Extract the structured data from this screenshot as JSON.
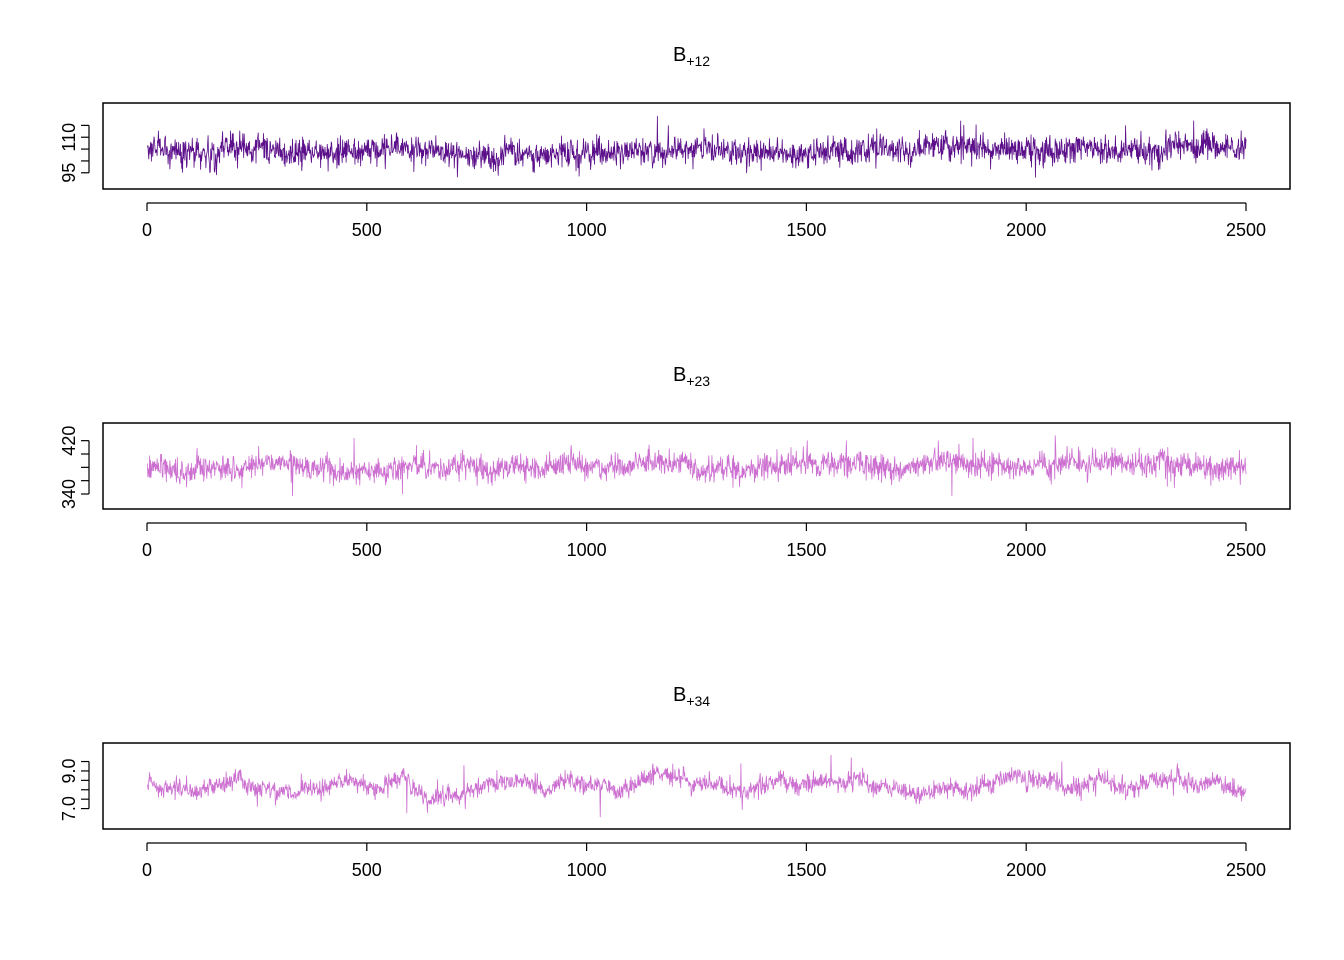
{
  "chart_data": [
    {
      "type": "line",
      "title_main": "B",
      "title_sub": "+12",
      "color": "#5b0f8a",
      "xlim": [
        0,
        2500
      ],
      "ylim": [
        92.8,
        119.8
      ],
      "x_ticks": [
        0,
        500,
        1000,
        1500,
        2000,
        2500
      ],
      "x_tick_labels": [
        "0",
        "500",
        "1000",
        "1500",
        "2000",
        "2500"
      ],
      "y_ticks": [
        95,
        100,
        105,
        110,
        115
      ],
      "y_tick_labels": [
        "95",
        "",
        "",
        "110",
        ""
      ],
      "series": [
        {
          "n": 2500,
          "mean": 104.5,
          "noise_sd": 3.0,
          "wander_sd": 1.2,
          "clip": [
            93,
            119
          ],
          "features": [
            [
              1160,
              119
            ],
            [
              2020,
              93
            ],
            [
              1850,
              117
            ],
            [
              2380,
              117
            ],
            [
              2225,
              115
            ],
            [
              1185,
              115
            ],
            [
              80,
              95
            ],
            [
              880,
              95
            ]
          ]
        }
      ]
    },
    {
      "type": "line",
      "title_main": "B",
      "title_sub": "+23",
      "color": "#cc6fd0",
      "xlim": [
        0,
        2500
      ],
      "ylim": [
        334,
        430
      ],
      "x_ticks": [
        0,
        500,
        1000,
        1500,
        2000,
        2500
      ],
      "x_tick_labels": [
        "0",
        "500",
        "1000",
        "1500",
        "2000",
        "2500"
      ],
      "y_ticks": [
        340,
        360,
        380,
        400,
        420
      ],
      "y_tick_labels": [
        "340",
        "",
        "",
        "",
        "420"
      ],
      "series": [
        {
          "n": 2500,
          "mean": 380,
          "noise_sd": 9.5,
          "wander_sd": 6.0,
          "clip": [
            335,
            428
          ],
          "features": [
            [
              2065,
              428
            ],
            [
              470,
              424
            ],
            [
              1830,
              337
            ],
            [
              330,
              337
            ],
            [
              580,
              340
            ],
            [
              1590,
              420
            ]
          ]
        }
      ]
    },
    {
      "type": "line",
      "title_main": "B",
      "title_sub": "+34",
      "color": "#cc6fd0",
      "xlim": [
        0,
        2500
      ],
      "ylim": [
        6.5,
        9.9
      ],
      "x_ticks": [
        0,
        500,
        1000,
        1500,
        2000,
        2500
      ],
      "x_tick_labels": [
        "0",
        "500",
        "1000",
        "1500",
        "2000",
        "2500"
      ],
      "y_ticks": [
        7.0,
        7.5,
        8.0,
        8.5,
        9.0,
        9.5
      ],
      "y_tick_labels": [
        "7.0",
        "",
        "",
        "",
        "9.0",
        ""
      ],
      "series": [
        {
          "n": 2500,
          "mean": 8.2,
          "noise_sd": 0.25,
          "wander_sd": 0.3,
          "clip": [
            6.55,
            9.85
          ],
          "features": [
            [
              1555,
              9.85
            ],
            [
              1030,
              6.55
            ],
            [
              590,
              6.75
            ],
            [
              720,
              9.3
            ],
            [
              2080,
              9.5
            ],
            [
              250,
              7.1
            ],
            [
              1350,
              9.4
            ]
          ]
        }
      ]
    }
  ]
}
